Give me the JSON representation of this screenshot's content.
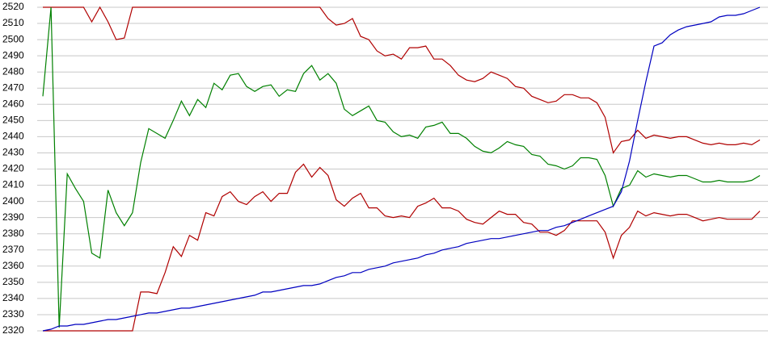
{
  "chart_data": {
    "type": "line",
    "ylim": [
      2320,
      2520
    ],
    "yticks": [
      2320,
      2330,
      2340,
      2350,
      2360,
      2370,
      2380,
      2390,
      2400,
      2410,
      2420,
      2430,
      2440,
      2450,
      2460,
      2470,
      2480,
      2490,
      2500,
      2510,
      2520
    ],
    "grid": true,
    "series": [
      {
        "color": "#b00000",
        "values": [
          2520,
          2520,
          2520,
          2520,
          2520,
          2520,
          2511,
          2520,
          2511,
          2500,
          2501,
          2520,
          2520,
          2520,
          2520,
          2520,
          2520,
          2520,
          2520,
          2520,
          2520,
          2520,
          2520,
          2520,
          2520,
          2520,
          2520,
          2520,
          2520,
          2520,
          2520,
          2520,
          2520,
          2520,
          2520,
          2513,
          2509,
          2510,
          2513,
          2502,
          2500,
          2493,
          2490,
          2491,
          2488,
          2495,
          2495,
          2496,
          2488,
          2488,
          2484,
          2478,
          2475,
          2474,
          2476,
          2480,
          2478,
          2476,
          2471,
          2470,
          2465,
          2463,
          2461,
          2462,
          2466,
          2466,
          2464,
          2464,
          2461,
          2452,
          2430,
          2437,
          2438,
          2444,
          2439,
          2441,
          2440,
          2439,
          2440,
          2440,
          2438,
          2436,
          2435,
          2436,
          2435,
          2435,
          2436,
          2435,
          2438
        ]
      },
      {
        "color": "#b00000",
        "values": [
          2320,
          2320,
          2320,
          2320,
          2320,
          2320,
          2320,
          2320,
          2320,
          2320,
          2320,
          2320,
          2344,
          2344,
          2343,
          2356,
          2372,
          2366,
          2379,
          2376,
          2393,
          2391,
          2403,
          2406,
          2400,
          2398,
          2403,
          2406,
          2400,
          2405,
          2405,
          2418,
          2423,
          2415,
          2421,
          2416,
          2401,
          2397,
          2402,
          2405,
          2396,
          2396,
          2391,
          2390,
          2391,
          2390,
          2397,
          2399,
          2402,
          2396,
          2396,
          2394,
          2389,
          2387,
          2386,
          2390,
          2394,
          2392,
          2392,
          2387,
          2386,
          2381,
          2381,
          2379,
          2382,
          2388,
          2388,
          2388,
          2388,
          2381,
          2365,
          2379,
          2384,
          2394,
          2391,
          2393,
          2392,
          2391,
          2392,
          2392,
          2390,
          2388,
          2389,
          2390,
          2389,
          2389,
          2389,
          2389,
          2394
        ]
      },
      {
        "color": "#008000",
        "values": [
          2465,
          2520,
          2322,
          2417,
          2408,
          2400,
          2368,
          2365,
          2407,
          2393,
          2385,
          2393,
          2424,
          2445,
          2442,
          2439,
          2450,
          2462,
          2453,
          2463,
          2458,
          2473,
          2469,
          2478,
          2479,
          2471,
          2468,
          2471,
          2472,
          2465,
          2469,
          2468,
          2479,
          2484,
          2475,
          2479,
          2473,
          2457,
          2453,
          2456,
          2459,
          2450,
          2449,
          2443,
          2440,
          2441,
          2439,
          2446,
          2447,
          2449,
          2442,
          2442,
          2439,
          2434,
          2431,
          2430,
          2433,
          2437,
          2435,
          2434,
          2429,
          2428,
          2423,
          2422,
          2420,
          2422,
          2427,
          2427,
          2426,
          2416,
          2397,
          2408,
          2410,
          2419,
          2415,
          2417,
          2416,
          2415,
          2416,
          2416,
          2414,
          2412,
          2412,
          2413,
          2412,
          2412,
          2412,
          2413,
          2416
        ]
      },
      {
        "color": "#0000c0",
        "values": [
          2320,
          2321,
          2323,
          2323,
          2324,
          2324,
          2325,
          2326,
          2327,
          2327,
          2328,
          2329,
          2330,
          2331,
          2331,
          2332,
          2333,
          2334,
          2334,
          2335,
          2336,
          2337,
          2338,
          2339,
          2340,
          2341,
          2342,
          2344,
          2344,
          2345,
          2346,
          2347,
          2348,
          2348,
          2349,
          2351,
          2353,
          2354,
          2356,
          2356,
          2358,
          2359,
          2360,
          2362,
          2363,
          2364,
          2365,
          2367,
          2368,
          2370,
          2371,
          2372,
          2374,
          2375,
          2376,
          2377,
          2377,
          2378,
          2379,
          2380,
          2381,
          2382,
          2382,
          2384,
          2385,
          2387,
          2389,
          2391,
          2393,
          2395,
          2397,
          2406,
          2425,
          2450,
          2474,
          2496,
          2498,
          2503,
          2506,
          2508,
          2509,
          2510,
          2511,
          2514,
          2515,
          2515,
          2516,
          2518,
          2520
        ]
      }
    ]
  }
}
